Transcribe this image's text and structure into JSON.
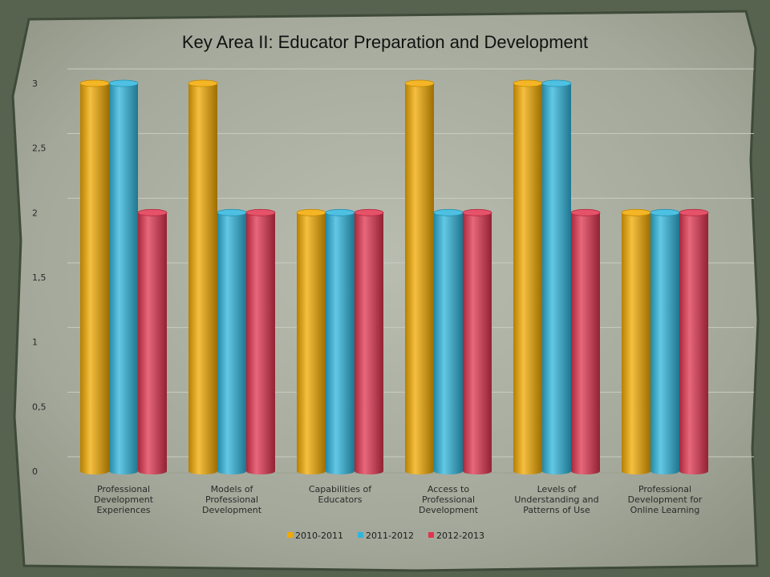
{
  "chart_data": {
    "type": "bar",
    "title": "Key Area II: Educator Preparation and Development",
    "categories": [
      [
        "Professional",
        "Development",
        "Experiences"
      ],
      [
        "Models of",
        "Professional",
        "Development"
      ],
      [
        "Capabilities of",
        "Educators"
      ],
      [
        "Access to",
        "Professional",
        "Development"
      ],
      [
        "Levels of",
        "Understanding and",
        "Patterns of Use"
      ],
      [
        "Professional",
        "Development for",
        "Online Learning"
      ]
    ],
    "series": [
      {
        "name": "2010-2011",
        "color": "#f2a900",
        "values": [
          3,
          3,
          2,
          3,
          3,
          2
        ]
      },
      {
        "name": "2011-2012",
        "color": "#2fb5dc",
        "values": [
          3,
          2,
          2,
          2,
          3,
          2
        ]
      },
      {
        "name": "2012-2013",
        "color": "#e0344f",
        "values": [
          2,
          2,
          2,
          2,
          2,
          2
        ]
      }
    ],
    "ylim": [
      0,
      3
    ],
    "yticks": [
      "0",
      "0,5",
      "1",
      "1,5",
      "2",
      "2,5",
      "3"
    ],
    "grid": true,
    "legend_position": "bottom"
  }
}
